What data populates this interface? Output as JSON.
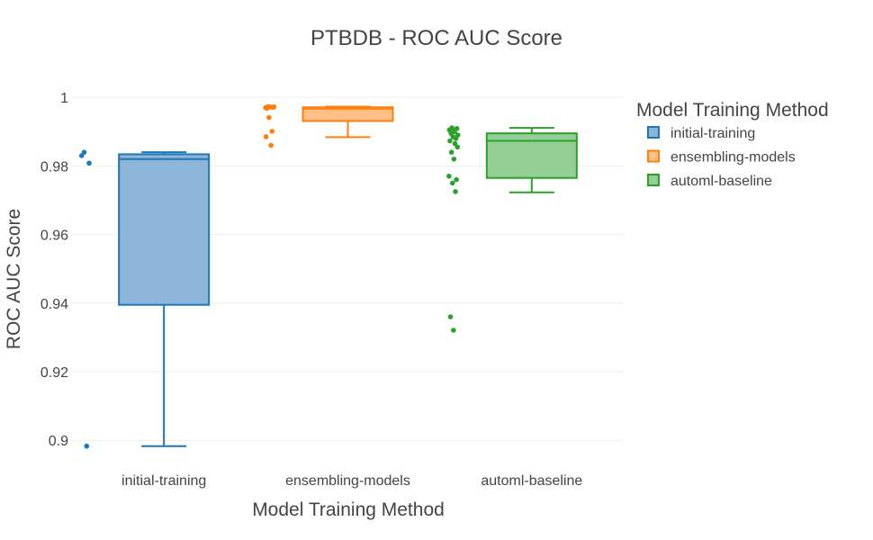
{
  "chart_data": {
    "type": "box",
    "title": "PTBDB - ROC AUC Score",
    "xlabel": "Model Training Method",
    "ylabel": "ROC AUC Score",
    "ylim": [
      0.8935,
      1.0045
    ],
    "yticks": [
      0.9,
      0.92,
      0.94,
      0.96,
      0.98,
      1
    ],
    "ytick_labels": [
      "0.9",
      "0.92",
      "0.94",
      "0.96",
      "0.98",
      "1"
    ],
    "grid": true,
    "legend": {
      "title": "Model Training Method",
      "placement": "right"
    },
    "categories": [
      "initial-training",
      "ensembling-models",
      "automl-baseline"
    ],
    "series": [
      {
        "name": "initial-training",
        "color": "#1f77b4",
        "fill": "#8db5d8",
        "box": {
          "lower_whisker": 0.8983,
          "q1": 0.9395,
          "median": 0.982,
          "q3": 0.9834,
          "upper_whisker": 0.984
        },
        "points": [
          0.984,
          0.9808,
          0.983,
          0.8983
        ]
      },
      {
        "name": "ensembling-models",
        "color": "#ff7f0e",
        "fill": "#ffbf87",
        "box": {
          "lower_whisker": 0.9884,
          "q1": 0.9931,
          "median": 0.9967,
          "q3": 0.9971,
          "upper_whisker": 0.9973
        },
        "points": [
          0.9973,
          0.9971,
          0.997,
          0.9972,
          0.9968,
          0.9972,
          0.9941,
          0.9901,
          0.9885,
          0.986
        ]
      },
      {
        "name": "automl-baseline",
        "color": "#2ca02c",
        "fill": "#95cf95",
        "box": {
          "lower_whisker": 0.9723,
          "q1": 0.9765,
          "median": 0.9873,
          "q3": 0.9895,
          "upper_whisker": 0.9911
        },
        "points": [
          0.9911,
          0.9909,
          0.9905,
          0.99,
          0.9895,
          0.989,
          0.9885,
          0.988,
          0.9873,
          0.9865,
          0.9855,
          0.984,
          0.982,
          0.977,
          0.976,
          0.975,
          0.9725,
          0.936,
          0.9321
        ]
      }
    ]
  }
}
